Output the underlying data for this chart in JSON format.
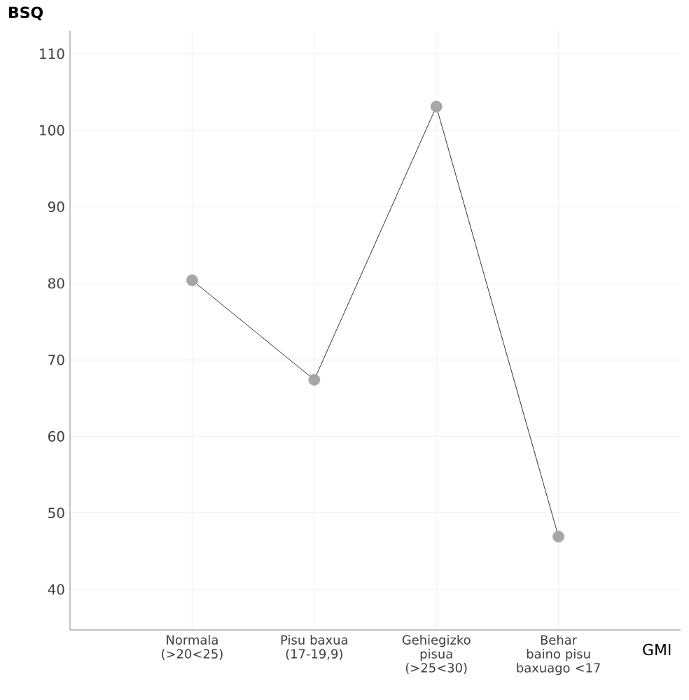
{
  "chart_data": {
    "type": "line",
    "xlabel": "GMI",
    "ylabel": "BSQ",
    "categories": [
      "Normala (>20<25)",
      "Pisu baxua (17-19,9)",
      "Gehiegizko pisua (>25<30)",
      "Behar baino pisu baxuago <17"
    ],
    "series": [
      {
        "color": "#000000",
        "values": [
          80.4,
          67.4,
          103.1,
          46.9
        ]
      }
    ],
    "ylim": [
      34.7,
      113
    ],
    "yticks": [
      40,
      50,
      60,
      70,
      80,
      90,
      100,
      110
    ],
    "grid": true,
    "marker": "circle",
    "line_style": "solid"
  }
}
